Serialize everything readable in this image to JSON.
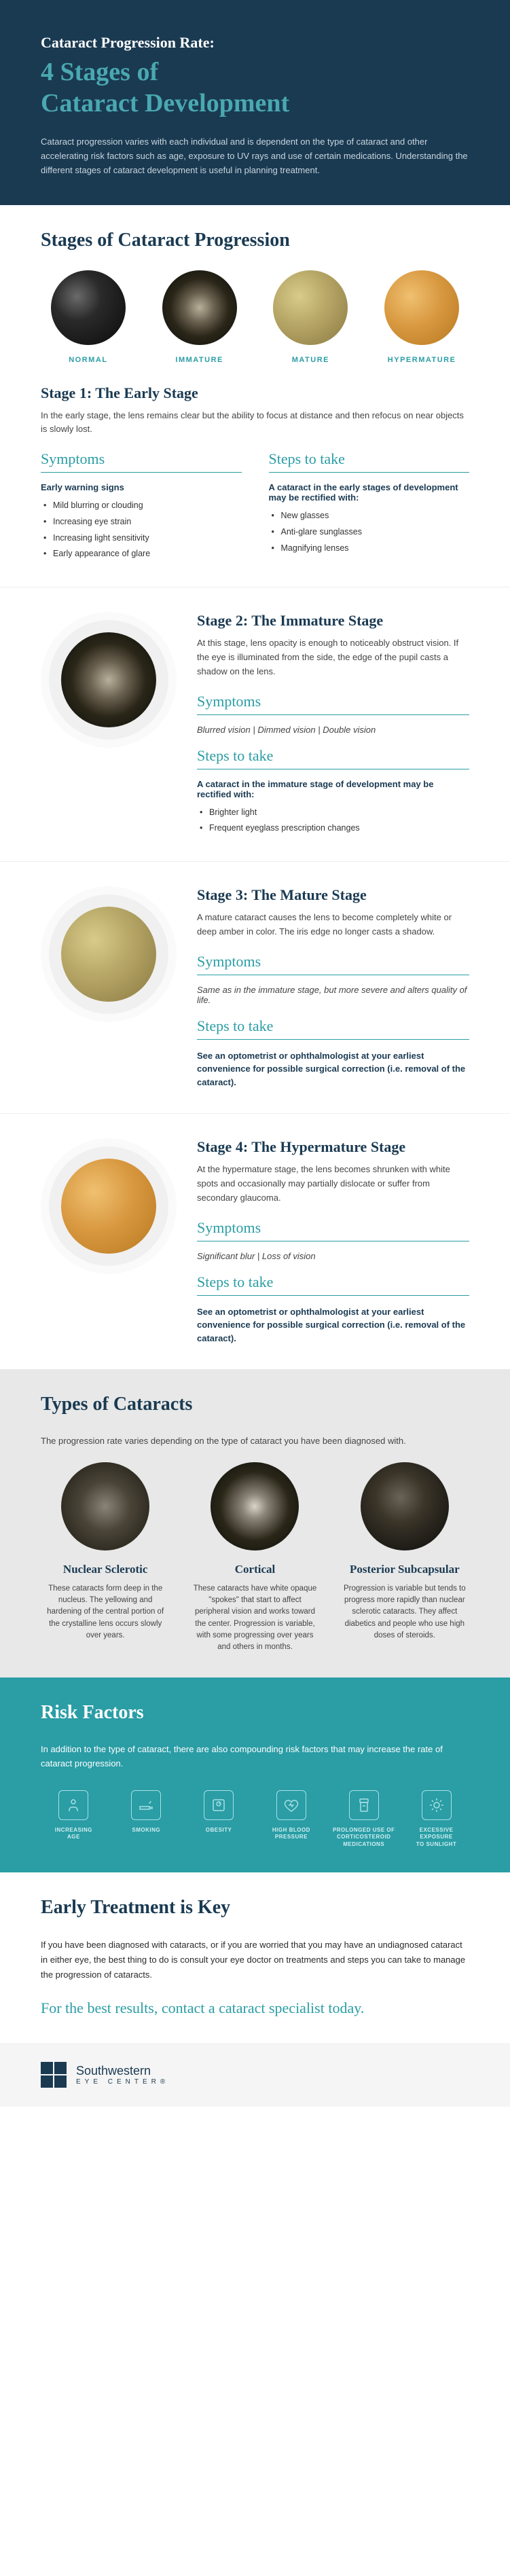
{
  "hero": {
    "overline": "Cataract Progression Rate:",
    "title": "4 Stages of\nCataract Development",
    "desc": "Cataract progression varies with each individual and is dependent on the type of cataract and other accelerating risk factors such as age, exposure to UV rays and use of certain medications. Understanding the different stages of cataract development is useful in planning treatment."
  },
  "progression": {
    "title": "Stages of Cataract Progression",
    "spheres": [
      {
        "label": "NORMAL",
        "bg": "radial-gradient(circle at 35% 35%, #6a6a6a 0%, #2a2a2a 35%, #0a0a0a 100%)"
      },
      {
        "label": "IMMATURE",
        "bg": "radial-gradient(circle at 50% 50%, #b8b09a 0%, #6a6050 28%, #2a2618 55%, #0a0a0a 100%)"
      },
      {
        "label": "MATURE",
        "bg": "radial-gradient(circle at 35% 35%, #d8cc8a 0%, #b8a868 40%, #8a7840 100%)"
      },
      {
        "label": "HYPERMATURE",
        "bg": "radial-gradient(circle at 35% 35%, #f0c070 0%, #d89840 45%, #b87820 100%)"
      }
    ]
  },
  "stage1": {
    "title": "Stage 1: The Early Stage",
    "desc": "In the early stage, the lens remains clear but the ability to focus at distance and then refocus on near objects is slowly lost.",
    "symptoms_title": "Symptoms",
    "symptoms_label": "Early warning signs",
    "symptoms": [
      "Mild blurring or clouding",
      "Increasing eye strain",
      "Increasing light sensitivity",
      "Early appearance of glare"
    ],
    "steps_title": "Steps to take",
    "steps_label": "A cataract in the early stages of development may be rectified with:",
    "steps": [
      "New glasses",
      "Anti-glare sunglasses",
      "Magnifying lenses"
    ]
  },
  "stage2": {
    "title": "Stage 2: The Immature Stage",
    "desc": "At this stage, lens opacity is enough to noticeably obstruct vision. If the eye is illuminated from the side, the edge of the pupil casts a shadow on the lens.",
    "symptoms_title": "Symptoms",
    "symptoms_inline": "Blurred vision  |  Dimmed vision  |  Double vision",
    "steps_title": "Steps to take",
    "steps_label": "A cataract in the immature stage of development may be rectified with:",
    "steps": [
      "Brighter light",
      "Frequent eyeglass prescription changes"
    ],
    "sphere_bg": "radial-gradient(circle at 50% 50%, #b8b09a 0%, #6a6050 28%, #2a2618 55%, #0a0a0a 100%)"
  },
  "stage3": {
    "title": "Stage 3: The Mature Stage",
    "desc": "A mature cataract causes the lens to become completely white or deep amber in color. The iris edge no longer casts a shadow.",
    "symptoms_title": "Symptoms",
    "symptoms_inline": "Same as in the immature stage, but more severe and alters quality of life.",
    "steps_title": "Steps to take",
    "steps_text": "See an optometrist or ophthalmologist at your earliest convenience for possible surgical correction (i.e. removal of the cataract).",
    "sphere_bg": "radial-gradient(circle at 35% 35%, #d8cc8a 0%, #b8a868 40%, #8a7840 100%)"
  },
  "stage4": {
    "title": "Stage 4: The Hypermature Stage",
    "desc": "At the hypermature stage, the lens becomes shrunken with white spots and occasionally may partially dislocate or suffer from secondary glaucoma.",
    "symptoms_title": "Symptoms",
    "symptoms_inline": "Significant blur  |  Loss of vision",
    "steps_title": "Steps to take",
    "steps_text": "See an optometrist or ophthalmologist at your earliest convenience for possible surgical correction (i.e. removal of the cataract).",
    "sphere_bg": "radial-gradient(circle at 35% 35%, #f0c070 0%, #d89840 45%, #b87820 100%)"
  },
  "types": {
    "title": "Types of Cataracts",
    "desc": "The progression rate varies depending on the type of cataract you have been diagnosed with.",
    "items": [
      {
        "name": "Nuclear Sclerotic",
        "desc": "These cataracts form deep in the nucleus. The yellowing and hardening of the central portion of the crystalline lens occurs slowly over years.",
        "bg": "radial-gradient(circle at 50% 50%, #8a8478 0%, #4a4438 40%, #1a1810 100%)"
      },
      {
        "name": "Cortical",
        "desc": "These cataracts have white opaque \"spokes\" that start to affect peripheral vision and works toward the center. Progression is variable, with some progressing over years and others in months.",
        "bg": "radial-gradient(circle at 50% 50%, #d8d4c8 0%, #8a8478 20%, #2a2618 55%, #0a0a0a 100%)"
      },
      {
        "name": "Posterior Subcapsular",
        "desc": "Progression is variable but tends to progress more rapidly than nuclear sclerotic cataracts. They affect diabetics and people who use high doses of steroids.",
        "bg": "radial-gradient(circle at 45% 40%, #6a6458 0%, #3a3428 35%, #0a0a0a 100%)"
      }
    ]
  },
  "risk": {
    "title": "Risk Factors",
    "desc": "In addition to the type of cataract, there are also compounding risk factors that may increase the rate of cataract progression.",
    "items": [
      {
        "label": "INCREASING\nAGE",
        "icon": "person"
      },
      {
        "label": "SMOKING",
        "icon": "cigarette"
      },
      {
        "label": "OBESITY",
        "icon": "scale"
      },
      {
        "label": "HIGH BLOOD\nPRESSURE",
        "icon": "heart"
      },
      {
        "label": "PROLONGED USE OF\nCORTICOSTEROID\nMEDICATIONS",
        "icon": "pills"
      },
      {
        "label": "EXCESSIVE\nEXPOSURE\nTO SUNLIGHT",
        "icon": "sun"
      }
    ]
  },
  "treatment": {
    "title": "Early Treatment is Key",
    "desc": "If you have been diagnosed with cataracts, or if you are worried that you may have an undiagnosed cataract in either eye, the best thing to do is consult your eye doctor on treatments and steps you can take to manage the progression of cataracts.",
    "cta": "For the best results, contact a cataract specialist today."
  },
  "footer": {
    "name": "Southwestern",
    "sub": "EYE CENTER®"
  }
}
